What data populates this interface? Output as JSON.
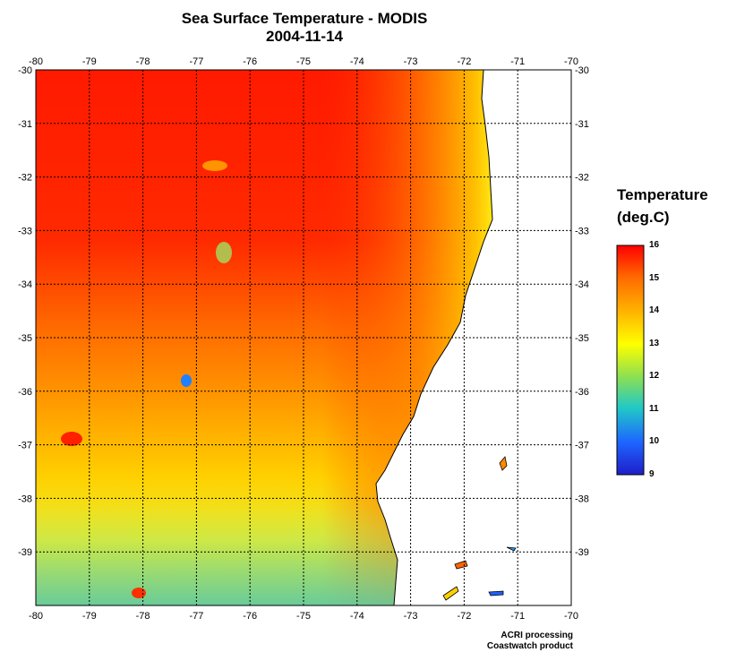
{
  "title": {
    "line1": "Sea Surface Temperature - MODIS",
    "line2": "2004-11-14"
  },
  "map": {
    "lon_ticks": [
      "-80",
      "-79",
      "-78",
      "-77",
      "-76",
      "-75",
      "-74",
      "-73",
      "-72",
      "-71",
      "-70"
    ],
    "lat_ticks": [
      "-30",
      "-31",
      "-32",
      "-33",
      "-34",
      "-35",
      "-36",
      "-37",
      "-38",
      "-39"
    ],
    "lon_range": [
      -80,
      -70
    ],
    "lat_range": [
      -40,
      -30
    ],
    "land_color": "#ffffff",
    "grid": "dotted"
  },
  "legend": {
    "title_line1": "Temperature",
    "title_line2": "(deg.C)",
    "labels": [
      "16",
      "15",
      "14",
      "13",
      "12",
      "11",
      "10",
      "9"
    ],
    "range": [
      9,
      16
    ],
    "colors": [
      "#ff0000",
      "#ff7a00",
      "#ffd200",
      "#ffff00",
      "#8fe050",
      "#20c8c8",
      "#1e64ff",
      "#1e1ec8"
    ]
  },
  "credits": {
    "line1": "ACRI processing",
    "line2": "Coastwatch product"
  }
}
